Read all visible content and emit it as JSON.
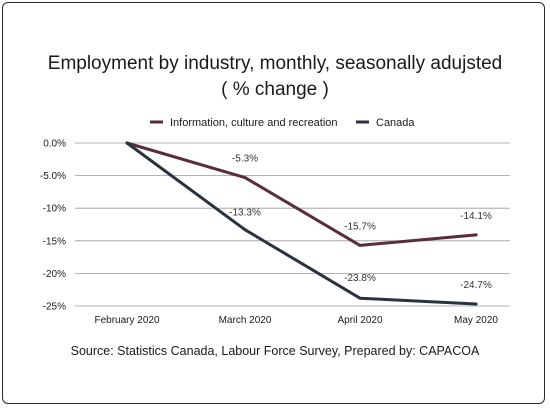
{
  "chart_data": {
    "type": "line",
    "title": "Employment by industry, monthly, seasonally  adujsted",
    "subtitle": "( % change )",
    "categories": [
      "February 2020",
      "March 2020",
      "April 2020",
      "May 2020"
    ],
    "series": [
      {
        "name": "Information, culture and recreation",
        "color": "#5a2d3e",
        "values": [
          0.0,
          -5.3,
          -15.7,
          -14.1
        ],
        "labels": [
          "",
          "-5.3%",
          "-15.7%",
          "-14.1%"
        ]
      },
      {
        "name": "Canada",
        "color": "#2a3140",
        "values": [
          0.0,
          -13.3,
          -23.8,
          -24.7
        ],
        "labels": [
          "",
          "-13.3%",
          "-23.8%",
          "-24.7%"
        ]
      }
    ],
    "y_ticks": [
      "0.0%",
      "-5.0%",
      "-10%",
      "-15%",
      "-20%",
      "-25%"
    ],
    "y_tick_values": [
      0,
      -5,
      -10,
      -15,
      -20,
      -25
    ],
    "ylim": [
      -25,
      0
    ],
    "grid": true,
    "legend_position": "top",
    "source": "Source: Statistics Canada, Labour Force Survey, Prepared by: CAPACOA"
  }
}
